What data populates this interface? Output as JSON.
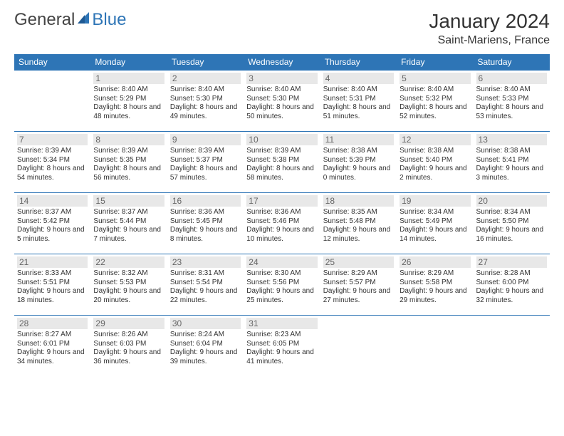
{
  "brand": {
    "part1": "General",
    "part2": "Blue"
  },
  "title": "January 2024",
  "location": "Saint-Mariens, France",
  "colors": {
    "header_bg": "#2e75b6",
    "header_text": "#ffffff",
    "daynum_bg": "#e8e8e8",
    "daynum_text": "#666666",
    "border": "#2e75b6",
    "body_text": "#333333"
  },
  "weekdays": [
    "Sunday",
    "Monday",
    "Tuesday",
    "Wednesday",
    "Thursday",
    "Friday",
    "Saturday"
  ],
  "start_offset": 1,
  "days": [
    {
      "n": 1,
      "sunrise": "8:40 AM",
      "sunset": "5:29 PM",
      "daylight": "8 hours and 48 minutes."
    },
    {
      "n": 2,
      "sunrise": "8:40 AM",
      "sunset": "5:30 PM",
      "daylight": "8 hours and 49 minutes."
    },
    {
      "n": 3,
      "sunrise": "8:40 AM",
      "sunset": "5:30 PM",
      "daylight": "8 hours and 50 minutes."
    },
    {
      "n": 4,
      "sunrise": "8:40 AM",
      "sunset": "5:31 PM",
      "daylight": "8 hours and 51 minutes."
    },
    {
      "n": 5,
      "sunrise": "8:40 AM",
      "sunset": "5:32 PM",
      "daylight": "8 hours and 52 minutes."
    },
    {
      "n": 6,
      "sunrise": "8:40 AM",
      "sunset": "5:33 PM",
      "daylight": "8 hours and 53 minutes."
    },
    {
      "n": 7,
      "sunrise": "8:39 AM",
      "sunset": "5:34 PM",
      "daylight": "8 hours and 54 minutes."
    },
    {
      "n": 8,
      "sunrise": "8:39 AM",
      "sunset": "5:35 PM",
      "daylight": "8 hours and 56 minutes."
    },
    {
      "n": 9,
      "sunrise": "8:39 AM",
      "sunset": "5:37 PM",
      "daylight": "8 hours and 57 minutes."
    },
    {
      "n": 10,
      "sunrise": "8:39 AM",
      "sunset": "5:38 PM",
      "daylight": "8 hours and 58 minutes."
    },
    {
      "n": 11,
      "sunrise": "8:38 AM",
      "sunset": "5:39 PM",
      "daylight": "9 hours and 0 minutes."
    },
    {
      "n": 12,
      "sunrise": "8:38 AM",
      "sunset": "5:40 PM",
      "daylight": "9 hours and 2 minutes."
    },
    {
      "n": 13,
      "sunrise": "8:38 AM",
      "sunset": "5:41 PM",
      "daylight": "9 hours and 3 minutes."
    },
    {
      "n": 14,
      "sunrise": "8:37 AM",
      "sunset": "5:42 PM",
      "daylight": "9 hours and 5 minutes."
    },
    {
      "n": 15,
      "sunrise": "8:37 AM",
      "sunset": "5:44 PM",
      "daylight": "9 hours and 7 minutes."
    },
    {
      "n": 16,
      "sunrise": "8:36 AM",
      "sunset": "5:45 PM",
      "daylight": "9 hours and 8 minutes."
    },
    {
      "n": 17,
      "sunrise": "8:36 AM",
      "sunset": "5:46 PM",
      "daylight": "9 hours and 10 minutes."
    },
    {
      "n": 18,
      "sunrise": "8:35 AM",
      "sunset": "5:48 PM",
      "daylight": "9 hours and 12 minutes."
    },
    {
      "n": 19,
      "sunrise": "8:34 AM",
      "sunset": "5:49 PM",
      "daylight": "9 hours and 14 minutes."
    },
    {
      "n": 20,
      "sunrise": "8:34 AM",
      "sunset": "5:50 PM",
      "daylight": "9 hours and 16 minutes."
    },
    {
      "n": 21,
      "sunrise": "8:33 AM",
      "sunset": "5:51 PM",
      "daylight": "9 hours and 18 minutes."
    },
    {
      "n": 22,
      "sunrise": "8:32 AM",
      "sunset": "5:53 PM",
      "daylight": "9 hours and 20 minutes."
    },
    {
      "n": 23,
      "sunrise": "8:31 AM",
      "sunset": "5:54 PM",
      "daylight": "9 hours and 22 minutes."
    },
    {
      "n": 24,
      "sunrise": "8:30 AM",
      "sunset": "5:56 PM",
      "daylight": "9 hours and 25 minutes."
    },
    {
      "n": 25,
      "sunrise": "8:29 AM",
      "sunset": "5:57 PM",
      "daylight": "9 hours and 27 minutes."
    },
    {
      "n": 26,
      "sunrise": "8:29 AM",
      "sunset": "5:58 PM",
      "daylight": "9 hours and 29 minutes."
    },
    {
      "n": 27,
      "sunrise": "8:28 AM",
      "sunset": "6:00 PM",
      "daylight": "9 hours and 32 minutes."
    },
    {
      "n": 28,
      "sunrise": "8:27 AM",
      "sunset": "6:01 PM",
      "daylight": "9 hours and 34 minutes."
    },
    {
      "n": 29,
      "sunrise": "8:26 AM",
      "sunset": "6:03 PM",
      "daylight": "9 hours and 36 minutes."
    },
    {
      "n": 30,
      "sunrise": "8:24 AM",
      "sunset": "6:04 PM",
      "daylight": "9 hours and 39 minutes."
    },
    {
      "n": 31,
      "sunrise": "8:23 AM",
      "sunset": "6:05 PM",
      "daylight": "9 hours and 41 minutes."
    }
  ],
  "labels": {
    "sunrise": "Sunrise:",
    "sunset": "Sunset:",
    "daylight": "Daylight:"
  }
}
